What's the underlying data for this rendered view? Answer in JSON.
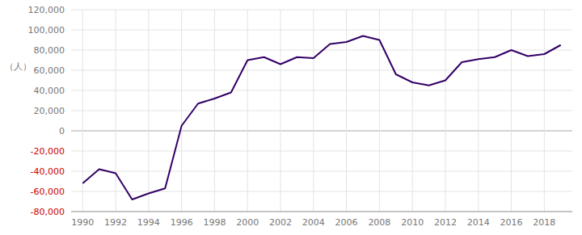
{
  "chart_data": {
    "type": "line",
    "y_label": "（人）",
    "x": [
      1990,
      1991,
      1992,
      1993,
      1994,
      1995,
      1996,
      1997,
      1998,
      1999,
      2000,
      2001,
      2002,
      2003,
      2004,
      2005,
      2006,
      2007,
      2008,
      2009,
      2010,
      2011,
      2012,
      2013,
      2014,
      2015,
      2016,
      2017,
      2018,
      2019
    ],
    "values": [
      -52000,
      -38000,
      -42000,
      -68000,
      -62000,
      -57000,
      5000,
      27000,
      32000,
      38000,
      70000,
      73000,
      66000,
      73000,
      72000,
      86000,
      88000,
      94000,
      90000,
      56000,
      48000,
      45000,
      50000,
      68000,
      71000,
      73000,
      80000,
      74000,
      76000,
      85000
    ],
    "color": "#330066",
    "xlim": [
      1989.3,
      2019.7
    ],
    "xticks": [
      1990,
      1992,
      1994,
      1996,
      1998,
      2000,
      2002,
      2004,
      2006,
      2008,
      2010,
      2012,
      2014,
      2016,
      2018
    ],
    "ylim": [
      -80000,
      120000
    ],
    "yticks": [
      {
        "value": -80000,
        "label": "-80,000"
      },
      {
        "value": -60000,
        "label": "-60,000"
      },
      {
        "value": -40000,
        "label": "-40,000"
      },
      {
        "value": -20000,
        "label": "-20,000"
      },
      0,
      {
        "value": 20000,
        "label": "20,000"
      },
      {
        "value": 40000,
        "label": "40,000"
      },
      {
        "value": 60000,
        "label": "60,000"
      },
      {
        "value": 80000,
        "label": "80,000"
      },
      {
        "value": 100000,
        "label": "100,000"
      },
      {
        "value": 120000,
        "label": "120,000"
      }
    ],
    "grid": true
  }
}
